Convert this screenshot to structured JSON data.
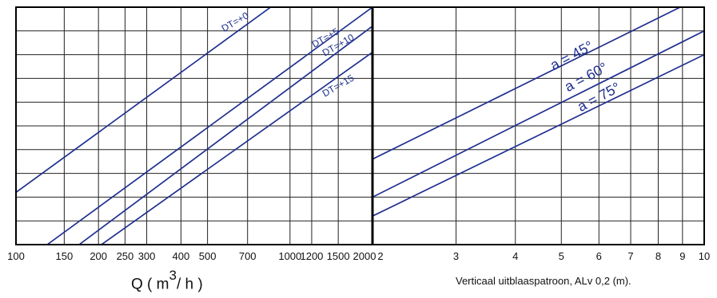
{
  "chart_data": [
    {
      "type": "line",
      "xscale": "log",
      "xlim": [
        100,
        2000
      ],
      "xticks": [
        100,
        150,
        200,
        250,
        300,
        400,
        500,
        700,
        1000,
        1200,
        1500,
        2000
      ],
      "xtick_labels": [
        "100",
        "150",
        "200",
        "250",
        "300",
        "400",
        "500",
        "700",
        "1000",
        "1200",
        "1500",
        "2000"
      ],
      "xlabel": {
        "prefix": "Q ( m",
        "sup": "3",
        "suffix": "/ h )"
      },
      "grid": true,
      "series": [
        {
          "name": "DT=+0",
          "points": [
            [
              100,
              0.22
            ],
            [
              850,
              1.0
            ]
          ]
        },
        {
          "name": "DT=+5",
          "points": [
            [
              130,
              0.0
            ],
            [
              2000,
              1.0
            ]
          ]
        },
        {
          "name": "DT=+10",
          "points": [
            [
              170,
              0.0
            ],
            [
              2000,
              0.92
            ]
          ]
        },
        {
          "name": "DT=+15",
          "points": [
            [
              205,
              0.0
            ],
            [
              2000,
              0.81
            ]
          ]
        }
      ]
    },
    {
      "type": "line",
      "xscale": "log",
      "xlim": [
        2,
        10
      ],
      "xticks": [
        2,
        3,
        4,
        5,
        6,
        7,
        8,
        9,
        10
      ],
      "xtick_labels": [
        "2",
        "3",
        "4",
        "5",
        "6",
        "7",
        "8",
        "9",
        "10"
      ],
      "xlabel": "Verticaal  uitblaaspatroon,   ALv   0,2  (m).",
      "grid": true,
      "series": [
        {
          "name": "a = 45°",
          "points": [
            [
              2,
              0.36
            ],
            [
              10,
              1.05
            ]
          ]
        },
        {
          "name": "a = 60°",
          "points": [
            [
              2,
              0.2
            ],
            [
              10,
              0.9
            ]
          ]
        },
        {
          "name": "a = 75°",
          "points": [
            [
              2,
              0.12
            ],
            [
              10,
              0.8
            ]
          ]
        }
      ]
    }
  ]
}
